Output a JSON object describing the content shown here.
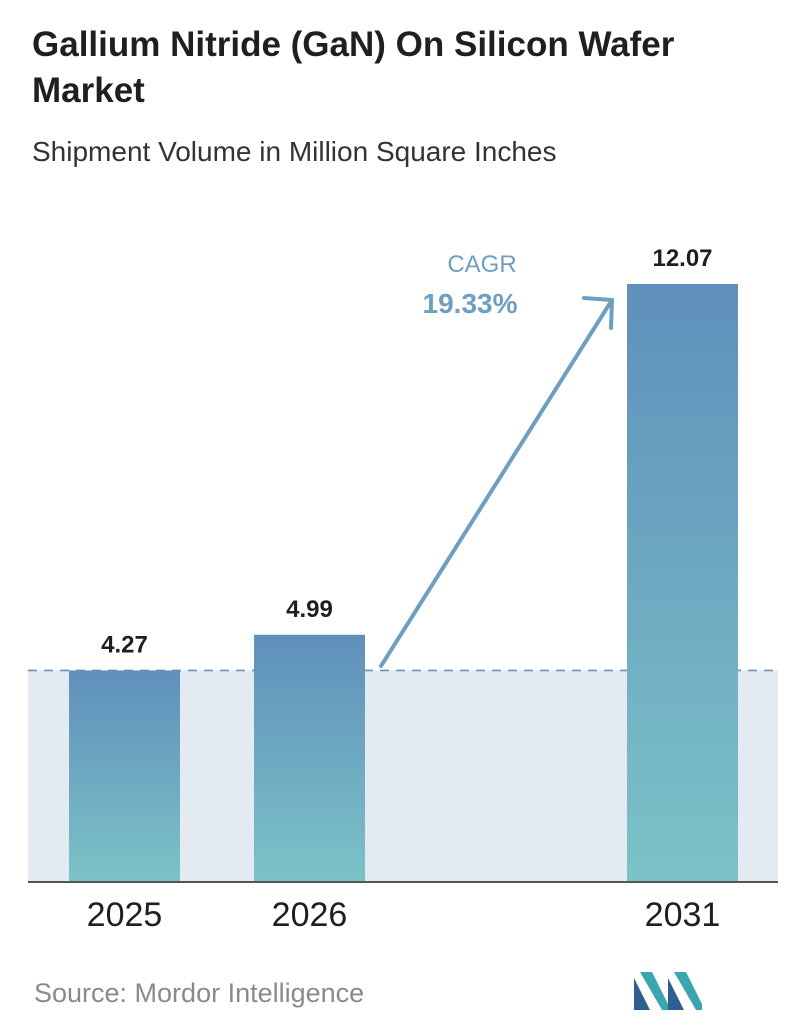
{
  "header": {
    "title": "Gallium Nitride (GaN) On Silicon Wafer Market",
    "subtitle": "Shipment Volume in Million Square Inches"
  },
  "chart_data": {
    "type": "bar",
    "title": "Gallium Nitride (GaN) On Silicon Wafer Market",
    "subtitle": "Shipment Volume in Million Square Inches",
    "categories": [
      "2025",
      "2026",
      "2031"
    ],
    "values": [
      4.27,
      4.99,
      12.07
    ],
    "value_labels": [
      "4.27",
      "4.99",
      "12.07"
    ],
    "xlabel": "",
    "ylabel": "",
    "ylim": [
      0,
      12.07
    ],
    "grid": false,
    "legend": "none",
    "baseline_reference_value": 4.27,
    "annotation": {
      "label": "CAGR",
      "value": "19.33%"
    },
    "colors": {
      "bar_top": "#5f90bb",
      "bar_bottom": "#7cc2c7",
      "band": "#e3eaf2",
      "reference_line": "#6a93b0",
      "arrow": "#6f9fc0",
      "axis": "#555555"
    }
  },
  "footer": {
    "source": "Source:  Mordor Intelligence",
    "logo_icon": "mordor-intelligence-logo-icon"
  }
}
